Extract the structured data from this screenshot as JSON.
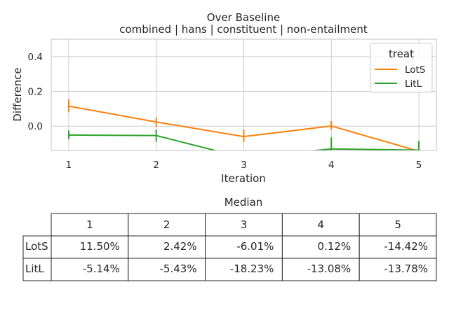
{
  "chart_data": {
    "type": "line",
    "title": "Over Baseline",
    "subtitle": "combined | hans | constituent | non-entailment",
    "xlabel": "Iteration",
    "ylabel": "Difference",
    "x": [
      1,
      2,
      3,
      4,
      5
    ],
    "xticks": [
      "1",
      "2",
      "3",
      "4",
      "5"
    ],
    "yticks": [
      "0.0",
      "0.2",
      "0.4"
    ],
    "xlim": [
      0.8,
      5.2
    ],
    "ylim": [
      -0.14,
      0.5
    ],
    "grid": true,
    "legend": {
      "title": "treat",
      "position": "top-right"
    },
    "series": [
      {
        "name": "LotS",
        "color": "#ff7f0e",
        "values": [
          0.115,
          0.024,
          -0.06,
          0.001,
          -0.144
        ],
        "error_low": [
          0.08,
          -0.005,
          -0.09,
          -0.02,
          -0.16
        ],
        "error_high": [
          0.155,
          0.05,
          -0.02,
          0.03,
          -0.12
        ]
      },
      {
        "name": "LitL",
        "color": "#2ca02c",
        "values": [
          -0.051,
          -0.054,
          -0.182,
          -0.131,
          -0.138
        ],
        "error_low": [
          -0.075,
          -0.09,
          -0.2,
          -0.16,
          -0.16
        ],
        "error_high": [
          -0.025,
          -0.02,
          -0.14,
          -0.065,
          -0.085
        ]
      }
    ],
    "table": {
      "title": "Median",
      "columns": [
        "1",
        "2",
        "3",
        "4",
        "5"
      ],
      "rows": [
        {
          "label": "LotS",
          "values": [
            "11.50%",
            "2.42%",
            "-6.01%",
            "0.12%",
            "-14.42%"
          ]
        },
        {
          "label": "LitL",
          "values": [
            "-5.14%",
            "-5.43%",
            "-18.23%",
            "-13.08%",
            "-13.78%"
          ]
        }
      ]
    }
  }
}
